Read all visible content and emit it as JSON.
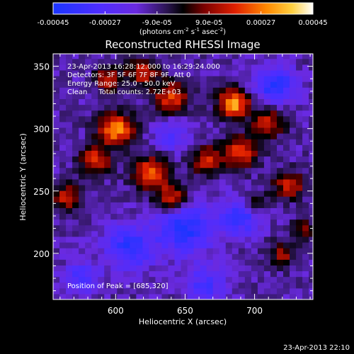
{
  "chart_data": {
    "type": "heatmap",
    "title": "Reconstructed RHESSI Image",
    "xlabel": "Heliocentric X (arcsec)",
    "ylabel": "Heliocentric Y (arcsec)",
    "xlim": [
      555,
      742
    ],
    "ylim": [
      163,
      360
    ],
    "x_ticks": [
      600,
      650,
      700
    ],
    "y_ticks": [
      200,
      250,
      300,
      350
    ],
    "colorbar": {
      "range": [
        -0.00045,
        0.00045
      ],
      "tick_labels": [
        "-0.00045",
        "-0.00027",
        "-9.0e-05",
        "9.0e-05",
        "0.00027",
        "0.00045"
      ],
      "unit_label": "(photons cm",
      "unit_label_sup1": "-2",
      "unit_label_mid": " s",
      "unit_label_sup2": "-1",
      "unit_label_end": " asec",
      "unit_label_sup3": "-2",
      "unit_label_close": ")",
      "colormap": "blue-purple-black-red-yellow-white"
    },
    "annotations": [
      "23-Apr-2013 16:28:12.000 to 16:29:24.000",
      "Detectors: 3F 5F 6F 7F 8F 9F, Att 0",
      "Energy Range: 25.0 - 50.0 keV",
      "Clean     Total counts: 2.72E+03"
    ],
    "peak_label": "Position of Peak = [685,320]",
    "peak": {
      "x": 685,
      "y": 320
    },
    "hotspots": [
      {
        "x": 600,
        "y": 300,
        "amp": 0.00042,
        "sigma": 9
      },
      {
        "x": 585,
        "y": 275,
        "amp": 0.0003,
        "sigma": 8
      },
      {
        "x": 625,
        "y": 265,
        "amp": 0.00034,
        "sigma": 9
      },
      {
        "x": 640,
        "y": 245,
        "amp": 0.0003,
        "sigma": 8
      },
      {
        "x": 690,
        "y": 282,
        "amp": 0.00032,
        "sigma": 9
      },
      {
        "x": 665,
        "y": 275,
        "amp": 0.00027,
        "sigma": 8
      },
      {
        "x": 685,
        "y": 320,
        "amp": 0.00045,
        "sigma": 8
      },
      {
        "x": 710,
        "y": 305,
        "amp": 0.00028,
        "sigma": 8
      },
      {
        "x": 640,
        "y": 325,
        "amp": 0.0003,
        "sigma": 9
      },
      {
        "x": 620,
        "y": 345,
        "amp": 0.00028,
        "sigma": 8
      },
      {
        "x": 595,
        "y": 340,
        "amp": 0.00026,
        "sigma": 7
      },
      {
        "x": 725,
        "y": 255,
        "amp": 0.00027,
        "sigma": 8
      },
      {
        "x": 565,
        "y": 245,
        "amp": 0.00026,
        "sigma": 8
      },
      {
        "x": 720,
        "y": 200,
        "amp": 0.00022,
        "sigma": 7
      },
      {
        "x": 735,
        "y": 220,
        "amp": 0.0002,
        "sigma": 6
      },
      {
        "x": 700,
        "y": 240,
        "amp": 0.0002,
        "sigma": 7
      }
    ],
    "coldspots": [
      {
        "x": 650,
        "y": 220,
        "amp": -0.0003,
        "sigma": 14
      },
      {
        "x": 610,
        "y": 205,
        "amp": -0.00028,
        "sigma": 12
      },
      {
        "x": 715,
        "y": 335,
        "amp": -0.0003,
        "sigma": 10
      },
      {
        "x": 690,
        "y": 230,
        "amp": -0.00028,
        "sigma": 10
      },
      {
        "x": 665,
        "y": 175,
        "amp": -0.0002,
        "sigma": 10
      },
      {
        "x": 575,
        "y": 180,
        "amp": -0.0002,
        "sigma": 9
      },
      {
        "x": 640,
        "y": 295,
        "amp": -0.00016,
        "sigma": 9
      }
    ]
  },
  "footer_timestamp": "23-Apr-2013 22:10"
}
